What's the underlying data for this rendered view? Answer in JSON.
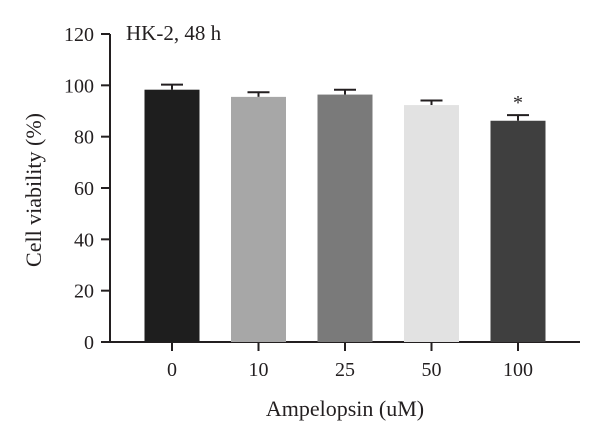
{
  "chart_data": {
    "type": "bar",
    "title": "HK-2, 48 h",
    "xlabel": "Ampelopsin (uM)",
    "ylabel": "Cell viability (%)",
    "ylim": [
      0,
      120
    ],
    "yticks": [
      0,
      20,
      40,
      60,
      80,
      100,
      120
    ],
    "categories": [
      "0",
      "10",
      "25",
      "50",
      "100"
    ],
    "values": [
      98.3,
      95.5,
      96.4,
      92.3,
      86.2
    ],
    "errors": [
      2.0,
      1.8,
      1.9,
      1.8,
      2.2
    ],
    "bar_colors": [
      "#1e1e1e",
      "#a7a7a7",
      "#7a7a7a",
      "#e2e2e2",
      "#3f3f3f"
    ],
    "annotations": [
      "",
      "",
      "",
      "",
      "*"
    ],
    "grid": false,
    "legend": "none"
  }
}
